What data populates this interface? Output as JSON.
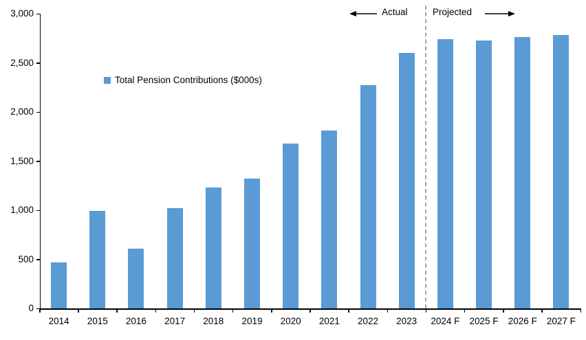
{
  "chart_data": {
    "type": "bar",
    "title": "",
    "legend_label": "Total Pension Contributions ($000s)",
    "legend_position": "inside-upper-left",
    "categories": [
      "2014",
      "2015",
      "2016",
      "2017",
      "2018",
      "2019",
      "2020",
      "2021",
      "2022",
      "2023",
      "2024 F",
      "2025 F",
      "2026 F",
      "2027 F"
    ],
    "values": [
      470,
      990,
      610,
      1020,
      1230,
      1320,
      1680,
      1810,
      2270,
      2600,
      2740,
      2730,
      2760,
      2780
    ],
    "xlabel": "",
    "ylabel": "",
    "ylim": [
      0,
      3000
    ],
    "ytick_interval": 500,
    "ytick_labels": [
      "0",
      "500",
      "1,000",
      "1,500",
      "2,000",
      "2,500",
      "3,000"
    ],
    "grid": false,
    "actual_label": "Actual",
    "projected_label": "Projected",
    "divider_after_category": "2023",
    "divider_after_index": 10,
    "colors": {
      "bar": "#5B9BD5",
      "divider": "#A6A6A6",
      "axis": "#000000",
      "text": "#000000",
      "background": "#FFFFFF"
    }
  }
}
